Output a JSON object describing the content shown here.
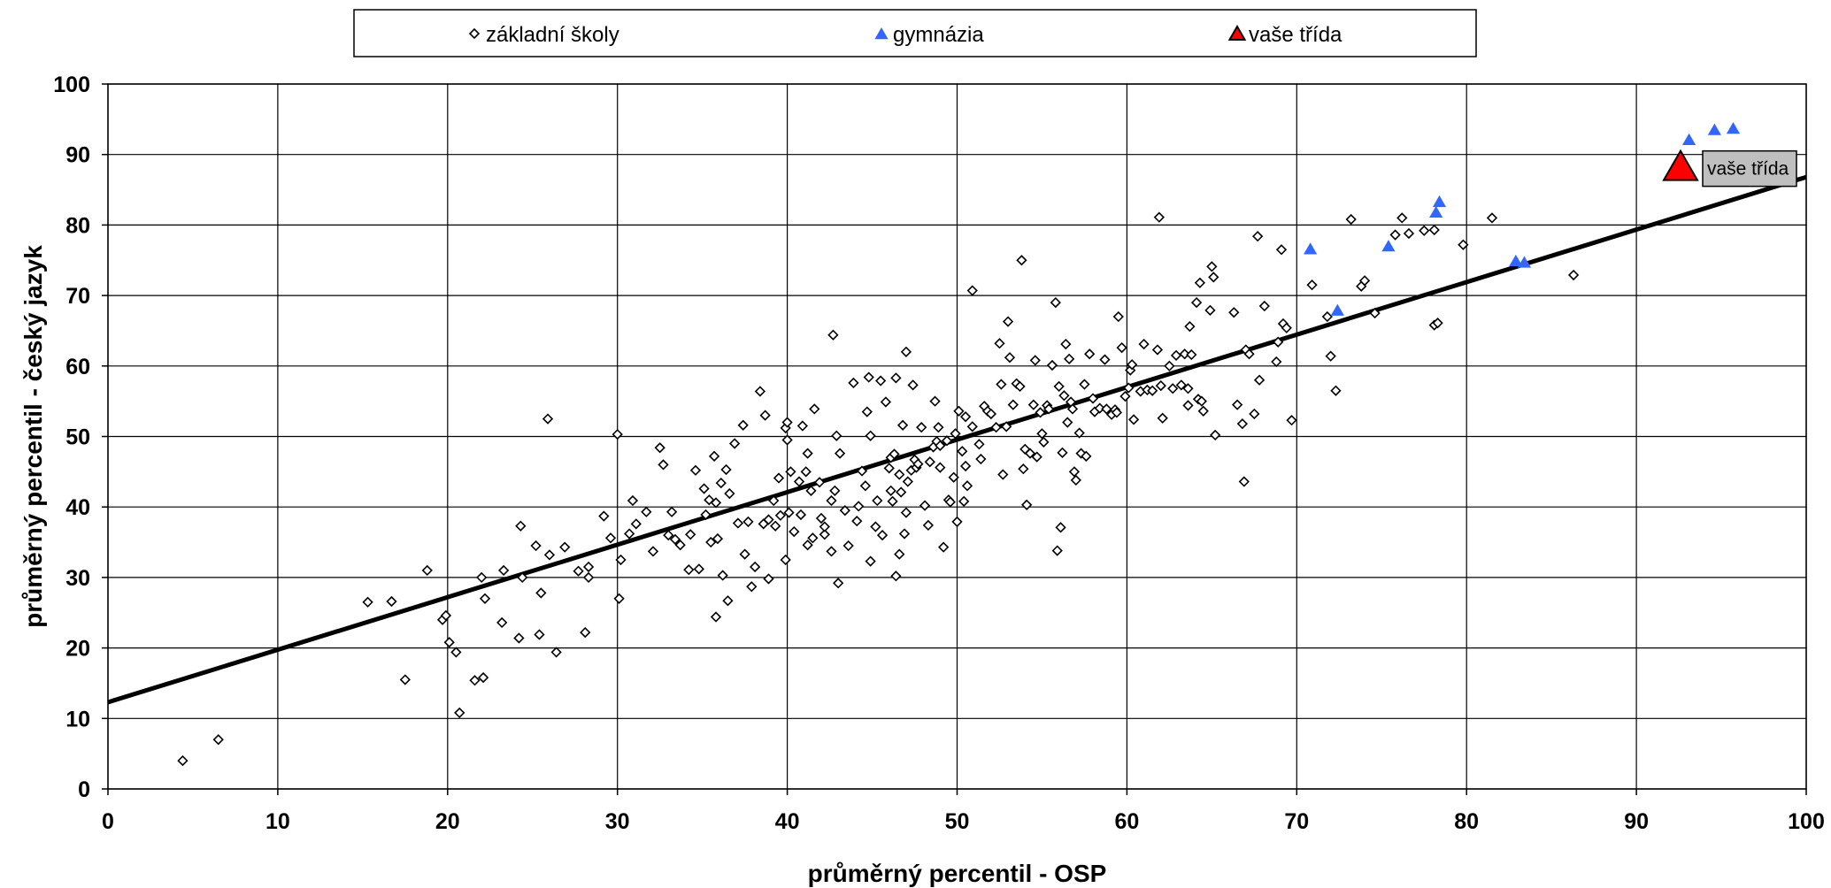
{
  "chart_data": {
    "type": "scatter",
    "xlabel": "průměrný percentil - OSP",
    "ylabel": "průměrný percentil - český jazyk",
    "xlim": [
      0,
      100
    ],
    "ylim": [
      0,
      100
    ],
    "x_ticks": [
      0,
      10,
      20,
      30,
      40,
      50,
      60,
      70,
      80,
      90,
      100
    ],
    "y_ticks": [
      0,
      10,
      20,
      30,
      40,
      50,
      60,
      70,
      80,
      90,
      100
    ],
    "grid": true,
    "legend_position": "top",
    "series": [
      {
        "name": "základní školy",
        "marker": "diamond",
        "color": "#000000",
        "points": [
          [
            4.4,
            4
          ],
          [
            6.5,
            7
          ],
          [
            15.3,
            26.5
          ],
          [
            16.7,
            26.6
          ],
          [
            17.5,
            15.5
          ],
          [
            18.8,
            31
          ],
          [
            19.7,
            24
          ],
          [
            19.9,
            24.6
          ],
          [
            20.1,
            20.8
          ],
          [
            20.5,
            19.4
          ],
          [
            20.7,
            10.8
          ],
          [
            21.6,
            15.4
          ],
          [
            22,
            30
          ],
          [
            22.1,
            15.8
          ],
          [
            22.2,
            27
          ],
          [
            23.2,
            23.6
          ],
          [
            23.3,
            31
          ],
          [
            24.2,
            21.4
          ],
          [
            24.4,
            30
          ],
          [
            24.3,
            37.3
          ],
          [
            25.2,
            34.5
          ],
          [
            25.4,
            21.9
          ],
          [
            25.5,
            27.8
          ],
          [
            25.9,
            52.5
          ],
          [
            26,
            33.2
          ],
          [
            26.4,
            19.4
          ],
          [
            26.9,
            34.3
          ],
          [
            27.7,
            30.9
          ],
          [
            28.1,
            22.2
          ],
          [
            28.3,
            30
          ],
          [
            28.3,
            31.5
          ],
          [
            29.2,
            38.7
          ],
          [
            29.6,
            35.6
          ],
          [
            30,
            50.3
          ],
          [
            30.1,
            27
          ],
          [
            30.2,
            32.5
          ],
          [
            30.7,
            36.2
          ],
          [
            30.9,
            40.9
          ],
          [
            31.1,
            37.6
          ],
          [
            31.7,
            39.3
          ],
          [
            32.1,
            33.7
          ],
          [
            32.5,
            48.4
          ],
          [
            32.7,
            46
          ],
          [
            33,
            36
          ],
          [
            33.2,
            39.3
          ],
          [
            33.4,
            35.4
          ],
          [
            33.7,
            34.6
          ],
          [
            34.2,
            31.1
          ],
          [
            34.3,
            36.1
          ],
          [
            34.6,
            45.2
          ],
          [
            34.8,
            31.2
          ],
          [
            35.1,
            42.6
          ],
          [
            35.2,
            38.9
          ],
          [
            35.4,
            41
          ],
          [
            35.5,
            35
          ],
          [
            35.7,
            47.2
          ],
          [
            35.8,
            24.4
          ],
          [
            35.8,
            40.6
          ],
          [
            35.9,
            35.5
          ],
          [
            36.1,
            43.4
          ],
          [
            36.2,
            30.3
          ],
          [
            36.4,
            45.3
          ],
          [
            36.5,
            26.7
          ],
          [
            36.6,
            41.9
          ],
          [
            36.9,
            49
          ],
          [
            37.1,
            37.7
          ],
          [
            37.4,
            51.6
          ],
          [
            37.5,
            33.3
          ],
          [
            37.7,
            37.9
          ],
          [
            37.9,
            28.7
          ],
          [
            38.1,
            31.5
          ],
          [
            38.4,
            56.4
          ],
          [
            38.6,
            37.6
          ],
          [
            38.7,
            53
          ],
          [
            38.9,
            29.8
          ],
          [
            38.9,
            38.2
          ],
          [
            39.2,
            40.9
          ],
          [
            39.3,
            37.3
          ],
          [
            39.5,
            44.1
          ],
          [
            39.6,
            38.8
          ],
          [
            39.9,
            51.2
          ],
          [
            39.9,
            32.5
          ],
          [
            40,
            49.5
          ],
          [
            40,
            52
          ],
          [
            40.1,
            39.2
          ],
          [
            40.2,
            45
          ],
          [
            40.4,
            36.5
          ],
          [
            40.7,
            43.6
          ],
          [
            40.8,
            38.9
          ],
          [
            40.9,
            51.5
          ],
          [
            41.1,
            45
          ],
          [
            41.2,
            47.6
          ],
          [
            41.2,
            34.6
          ],
          [
            41.4,
            42.3
          ],
          [
            41.5,
            35.6
          ],
          [
            41.6,
            53.9
          ],
          [
            41.9,
            43.5
          ],
          [
            42,
            38.4
          ],
          [
            42.2,
            36.1
          ],
          [
            42.2,
            37.2
          ],
          [
            42.6,
            40.9
          ],
          [
            42.6,
            33.7
          ],
          [
            42.7,
            64.4
          ],
          [
            42.8,
            42.3
          ],
          [
            42.9,
            50.1
          ],
          [
            43,
            29.2
          ],
          [
            43.1,
            47.6
          ],
          [
            43.4,
            39.5
          ],
          [
            43.6,
            34.5
          ],
          [
            43.9,
            57.6
          ],
          [
            44.1,
            38
          ],
          [
            44.2,
            40.1
          ],
          [
            44.4,
            45.1
          ],
          [
            44.6,
            43
          ],
          [
            44.7,
            53.5
          ],
          [
            44.8,
            58.4
          ],
          [
            44.9,
            50.1
          ],
          [
            44.9,
            32.3
          ],
          [
            45.2,
            37.2
          ],
          [
            45.3,
            40.9
          ],
          [
            45.5,
            57.9
          ],
          [
            45.6,
            36
          ],
          [
            45.8,
            54.9
          ],
          [
            46,
            45.5
          ],
          [
            46.1,
            42.3
          ],
          [
            46.1,
            47
          ],
          [
            46.2,
            40.8
          ],
          [
            46.3,
            47.5
          ],
          [
            46.4,
            58.3
          ],
          [
            46.4,
            30.2
          ],
          [
            46.6,
            44.6
          ],
          [
            46.6,
            33.3
          ],
          [
            46.7,
            42.1
          ],
          [
            46.8,
            51.6
          ],
          [
            46.9,
            36.2
          ],
          [
            47,
            62
          ],
          [
            47,
            39.2
          ],
          [
            47.1,
            43.6
          ],
          [
            47.3,
            45.2
          ],
          [
            47.4,
            57.3
          ],
          [
            47.5,
            46.7
          ],
          [
            47.6,
            45.6
          ],
          [
            47.7,
            46.1
          ],
          [
            47.9,
            51.3
          ],
          [
            48.1,
            40.2
          ],
          [
            48.3,
            37.4
          ],
          [
            48.4,
            46.4
          ],
          [
            48.6,
            48.5
          ],
          [
            48.7,
            55
          ],
          [
            48.8,
            49.3
          ],
          [
            48.9,
            51.3
          ],
          [
            49,
            45.6
          ],
          [
            49,
            48.7
          ],
          [
            49.2,
            34.3
          ],
          [
            49.4,
            49.4
          ],
          [
            49.5,
            41
          ],
          [
            49.6,
            40.7
          ],
          [
            49.8,
            44.2
          ],
          [
            49.9,
            50.4
          ],
          [
            50,
            37.9
          ],
          [
            50.1,
            53.6
          ],
          [
            50.3,
            47.9
          ],
          [
            50.4,
            40.8
          ],
          [
            50.5,
            45.8
          ],
          [
            50.5,
            52.8
          ],
          [
            50.6,
            43
          ],
          [
            50.9,
            51.4
          ],
          [
            50.9,
            70.7
          ],
          [
            51.3,
            48.9
          ],
          [
            51.4,
            46.8
          ],
          [
            51.6,
            54.3
          ],
          [
            51.8,
            53.6
          ],
          [
            52,
            53.2
          ],
          [
            52.3,
            51.3
          ],
          [
            52.5,
            63.2
          ],
          [
            52.6,
            57.4
          ],
          [
            52.7,
            44.6
          ],
          [
            52.9,
            51.4
          ],
          [
            53,
            66.3
          ],
          [
            53.1,
            61.2
          ],
          [
            53.3,
            54.5
          ],
          [
            53.5,
            57.5
          ],
          [
            53.7,
            57.1
          ],
          [
            53.8,
            75
          ],
          [
            53.9,
            45.4
          ],
          [
            54,
            48.2
          ],
          [
            54.1,
            40.3
          ],
          [
            54.3,
            47.6
          ],
          [
            54.5,
            54.5
          ],
          [
            54.6,
            60.8
          ],
          [
            54.7,
            47.1
          ],
          [
            54.9,
            53.4
          ],
          [
            55,
            50.4
          ],
          [
            55.1,
            49.2
          ],
          [
            55.3,
            54.4
          ],
          [
            55.4,
            53.9
          ],
          [
            55.6,
            60.1
          ],
          [
            55.8,
            69
          ],
          [
            55.9,
            33.8
          ],
          [
            56,
            57.1
          ],
          [
            56.1,
            37.1
          ],
          [
            56.2,
            47.7
          ],
          [
            56.3,
            55.8
          ],
          [
            56.4,
            63.1
          ],
          [
            56.5,
            52
          ],
          [
            56.6,
            61
          ],
          [
            56.7,
            54.9
          ],
          [
            56.8,
            53.9
          ],
          [
            56.9,
            45
          ],
          [
            57,
            43.8
          ],
          [
            57.2,
            50.5
          ],
          [
            57.3,
            47.6
          ],
          [
            57.5,
            57.4
          ],
          [
            57.6,
            47.2
          ],
          [
            57.8,
            61.7
          ],
          [
            58,
            55.4
          ],
          [
            58.1,
            53.5
          ],
          [
            58.4,
            54
          ],
          [
            58.7,
            60.9
          ],
          [
            58.8,
            53.9
          ],
          [
            59.1,
            53.1
          ],
          [
            59.3,
            53.8
          ],
          [
            59.4,
            53.4
          ],
          [
            59.5,
            67
          ],
          [
            59.7,
            62.6
          ],
          [
            59.9,
            55.7
          ],
          [
            60.1,
            56.9
          ],
          [
            60.2,
            59.4
          ],
          [
            60.3,
            60.2
          ],
          [
            60.4,
            52.4
          ],
          [
            60.8,
            56.4
          ],
          [
            61,
            63.1
          ],
          [
            61.2,
            56.6
          ],
          [
            61.5,
            56.5
          ],
          [
            61.8,
            62.3
          ],
          [
            61.9,
            81.1
          ],
          [
            62,
            57.2
          ],
          [
            62.1,
            52.6
          ],
          [
            62.5,
            60
          ],
          [
            62.7,
            56.8
          ],
          [
            62.9,
            61.5
          ],
          [
            63.2,
            57.3
          ],
          [
            63.4,
            61.7
          ],
          [
            63.6,
            56.8
          ],
          [
            63.6,
            54.4
          ],
          [
            63.7,
            65.6
          ],
          [
            63.8,
            61.6
          ],
          [
            64.1,
            69
          ],
          [
            64.2,
            55.3
          ],
          [
            64.3,
            71.8
          ],
          [
            64.4,
            55
          ],
          [
            64.5,
            53.6
          ],
          [
            64.9,
            67.9
          ],
          [
            65,
            74.1
          ],
          [
            65.1,
            72.6
          ],
          [
            65.2,
            50.2
          ],
          [
            66.3,
            67.6
          ],
          [
            66.5,
            54.5
          ],
          [
            66.8,
            51.8
          ],
          [
            66.9,
            43.6
          ],
          [
            67,
            62.3
          ],
          [
            67.2,
            61.7
          ],
          [
            67.5,
            53.2
          ],
          [
            67.8,
            58
          ],
          [
            67.7,
            78.4
          ],
          [
            68.1,
            68.5
          ],
          [
            68.8,
            60.6
          ],
          [
            68.9,
            63.4
          ],
          [
            69.1,
            76.5
          ],
          [
            69.2,
            66
          ],
          [
            69.4,
            65.4
          ],
          [
            69.7,
            52.3
          ],
          [
            70.9,
            71.5
          ],
          [
            71.8,
            67
          ],
          [
            72,
            61.4
          ],
          [
            72.3,
            56.5
          ],
          [
            73.2,
            80.8
          ],
          [
            73.8,
            71.3
          ],
          [
            74,
            72.1
          ],
          [
            74.6,
            67.5
          ],
          [
            75.8,
            78.6
          ],
          [
            76.2,
            81
          ],
          [
            76.6,
            78.8
          ],
          [
            77.5,
            79.2
          ],
          [
            78.1,
            79.3
          ],
          [
            78.1,
            65.8
          ],
          [
            78.3,
            66.1
          ],
          [
            79.8,
            77.2
          ],
          [
            81.5,
            81
          ],
          [
            86.3,
            72.9
          ]
        ]
      },
      {
        "name": "gymnázia",
        "marker": "triangle",
        "color": "#3366ff",
        "points": [
          [
            70.8,
            76.5
          ],
          [
            72.4,
            67.8
          ],
          [
            75.4,
            76.9
          ],
          [
            78.2,
            81.7
          ],
          [
            78.4,
            83.2
          ],
          [
            82.9,
            74.8
          ],
          [
            83.4,
            74.6
          ],
          [
            93.1,
            92
          ],
          [
            94.6,
            93.4
          ],
          [
            95.7,
            93.6
          ]
        ]
      },
      {
        "name": "vaše třída",
        "marker": "triangle-large",
        "color": "#ff0000",
        "points": [
          [
            92.6,
            88
          ]
        ]
      }
    ],
    "trendline": {
      "type": "linear",
      "intercept": 12.3,
      "slope": 0.745
    },
    "annotation": {
      "text": "vaše třída",
      "point_index": 0,
      "series": "vaše třída"
    }
  }
}
